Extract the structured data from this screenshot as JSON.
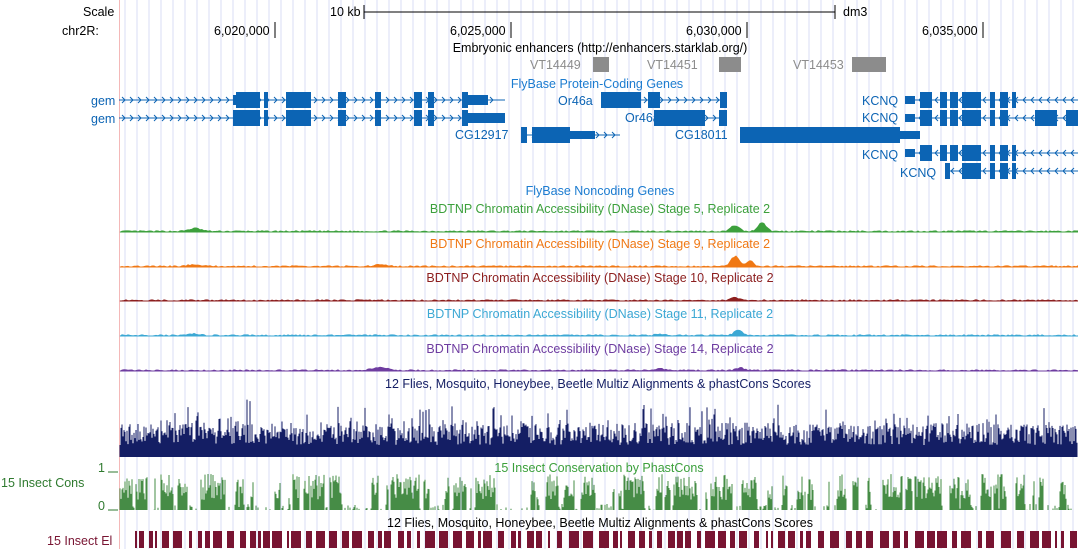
{
  "ruler": {
    "scale_label": "Scale",
    "chrom_label": "chr2R:",
    "scale_bar_text": "10 kb",
    "assembly": "dm3",
    "ticks": [
      "6,020,000",
      "6,025,000",
      "6,030,000",
      "6,035,000"
    ]
  },
  "tracks": {
    "enhancers": {
      "title": "Embryonic enhancers (http://enhancers.starklab.org/)",
      "color": "#8c8c8c",
      "items": [
        "VT14449",
        "VT14451",
        "VT14453"
      ]
    },
    "protein_genes": {
      "title": "FlyBase Protein-Coding Genes",
      "color": "#0c64b4",
      "title_color": "#1c7cd0",
      "labels": {
        "gem_1": "gem",
        "gem_2": "gem",
        "or46a_1": "Or46a",
        "or46a_2": "Or46a",
        "cg12917": "CG12917",
        "cg18011": "CG18011",
        "kcnq_1": "KCNQ",
        "kcnq_2": "KCNQ",
        "kcnq_3": "KCNQ",
        "kcnq_4": "KCNQ"
      }
    },
    "noncoding_genes": {
      "title": "FlyBase Noncoding Genes",
      "title_color": "#1c7cd0"
    },
    "dnase": [
      {
        "title": "BDTNP Chromatin Accessibility (DNase) Stage 5, Replicate 2",
        "color": "#3ca03c"
      },
      {
        "title": "BDTNP Chromatin Accessibility (DNase) Stage 9, Replicate 2",
        "color": "#f07814"
      },
      {
        "title": "BDTNP Chromatin Accessibility (DNase) Stage 10, Replicate 2",
        "color": "#8c1e1e"
      },
      {
        "title": "BDTNP Chromatin Accessibility (DNase) Stage 11, Replicate 2",
        "color": "#3ca8d4"
      },
      {
        "title": "BDTNP Chromatin Accessibility (DNase) Stage 14, Replicate 2",
        "color": "#6e3ca0"
      }
    ],
    "multiz": {
      "title": "12 Flies, Mosquito, Honeybee, Beetle Multiz Alignments & phastCons Scores",
      "color": "#141e64"
    },
    "insect_cons": {
      "title": "15 Insect Conservation by PhastCons",
      "left_label": "15 Insect Cons",
      "axis_top": "1",
      "axis_bottom": "0",
      "color": "#468c46",
      "title_color": "#3ca03c"
    },
    "insect_el": {
      "title": "12 Flies, Mosquito, Honeybee, Beetle Multiz Alignments & phastCons Scores",
      "left_label": "15 Insect El",
      "color": "#781432",
      "label_color": "#781432"
    }
  }
}
